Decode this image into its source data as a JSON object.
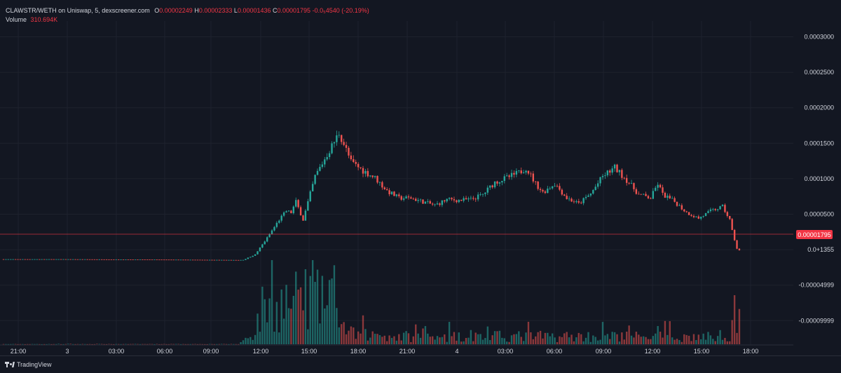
{
  "header": {
    "symbol_line": "CLAWSTR/WETH on Uniswap, 5, dexscreener.com",
    "open_label": "O",
    "open_value": "0.00002249",
    "high_label": "H",
    "high_value": "0.00002333",
    "low_label": "L",
    "low_value": "0.00001436",
    "close_label": "C",
    "close_value": "0.00001795",
    "change_value": "-0.0₅4540 (-20.19%)",
    "volume_label": "Volume",
    "volume_value": "310.694K"
  },
  "footer": {
    "brand": "TradingView"
  },
  "colors": {
    "background": "#131722",
    "up": "#26a69a",
    "down": "#ef5350",
    "grid": "#1e222d",
    "price_line": "#f23645",
    "axis_text": "#d1d4dc"
  },
  "chart_data": {
    "type": "candlestick",
    "timeframe": "5",
    "x_ticks": [
      "21:00",
      "3",
      "03:00",
      "06:00",
      "09:00",
      "12:00",
      "15:00",
      "18:00",
      "21:00",
      "4",
      "03:00",
      "06:00",
      "09:00",
      "12:00",
      "15:00",
      "18:00"
    ],
    "y_ticks": [
      "0.0003000",
      "0.0002500",
      "0.0002000",
      "0.0001500",
      "0.0001000",
      "0.0000500",
      "0.0+1355",
      "-0.00004999",
      "-0.00009999"
    ],
    "last_price_label": "0.00001795",
    "ylim": [
      -0.000113,
      0.000325
    ],
    "price_path": [
      [
        0,
        5.5e-06
      ],
      [
        25,
        5.5e-06
      ],
      [
        50,
        5.2e-06
      ],
      [
        75,
        4.8e-06
      ],
      [
        98,
        4.4e-06
      ],
      [
        100,
        4.5e-06
      ],
      [
        105,
        1.2e-05
      ],
      [
        110,
        3.5e-05
      ],
      [
        115,
        6e-05
      ],
      [
        118,
        7.2e-05
      ],
      [
        120,
        7e-05
      ],
      [
        122,
        8.5e-05
      ],
      [
        125,
        6e-05
      ],
      [
        130,
        0.00012
      ],
      [
        135,
        0.00015
      ],
      [
        138,
        0.000168
      ],
      [
        140,
        0.00018
      ],
      [
        142,
        0.000165
      ],
      [
        145,
        0.00014
      ],
      [
        150,
        0.000128
      ],
      [
        155,
        0.000118
      ],
      [
        160,
        0.0001
      ],
      [
        165,
        9e-05
      ],
      [
        170,
        9e-05
      ],
      [
        175,
        8.5e-05
      ],
      [
        180,
        8e-05
      ],
      [
        185,
        8.8e-05
      ],
      [
        190,
        8.7e-05
      ],
      [
        195,
        8.8e-05
      ],
      [
        200,
        9.5e-05
      ],
      [
        205,
        0.000112
      ],
      [
        210,
        0.000118
      ],
      [
        215,
        0.000125
      ],
      [
        218,
        0.000132
      ],
      [
        222,
        0.00011
      ],
      [
        225,
        9.8e-05
      ],
      [
        230,
        0.00011
      ],
      [
        235,
        9e-05
      ],
      [
        240,
        8.2e-05
      ],
      [
        245,
        9.6e-05
      ],
      [
        250,
        0.00012
      ],
      [
        255,
        0.000132
      ],
      [
        260,
        0.000115
      ],
      [
        265,
        9.5e-05
      ],
      [
        270,
        9e-05
      ],
      [
        273,
        0.00011
      ],
      [
        275,
        9.5e-05
      ],
      [
        280,
        8.5e-05
      ],
      [
        285,
        7e-05
      ],
      [
        290,
        6.2e-05
      ],
      [
        295,
        7.2e-05
      ],
      [
        300,
        7.8e-05
      ],
      [
        303,
        6e-05
      ],
      [
        304,
        4.5e-05
      ],
      [
        306,
        2e-05
      ],
      [
        307,
        1.795e-05
      ]
    ],
    "volume_path": [
      [
        0,
        300
      ],
      [
        98,
        400
      ],
      [
        104,
        20000
      ],
      [
        108,
        65000
      ],
      [
        112,
        70000
      ],
      [
        118,
        80000
      ],
      [
        120,
        75000
      ],
      [
        125,
        90000
      ],
      [
        130,
        85000
      ],
      [
        135,
        70000
      ],
      [
        140,
        40000
      ],
      [
        145,
        20000
      ],
      [
        160,
        15000
      ],
      [
        200,
        15000
      ],
      [
        250,
        15000
      ],
      [
        295,
        14000
      ],
      [
        303,
        20000
      ],
      [
        304,
        50000
      ],
      [
        305,
        70000
      ],
      [
        306,
        60000
      ],
      [
        307,
        40000
      ]
    ],
    "volume_axis_max": 160000
  }
}
